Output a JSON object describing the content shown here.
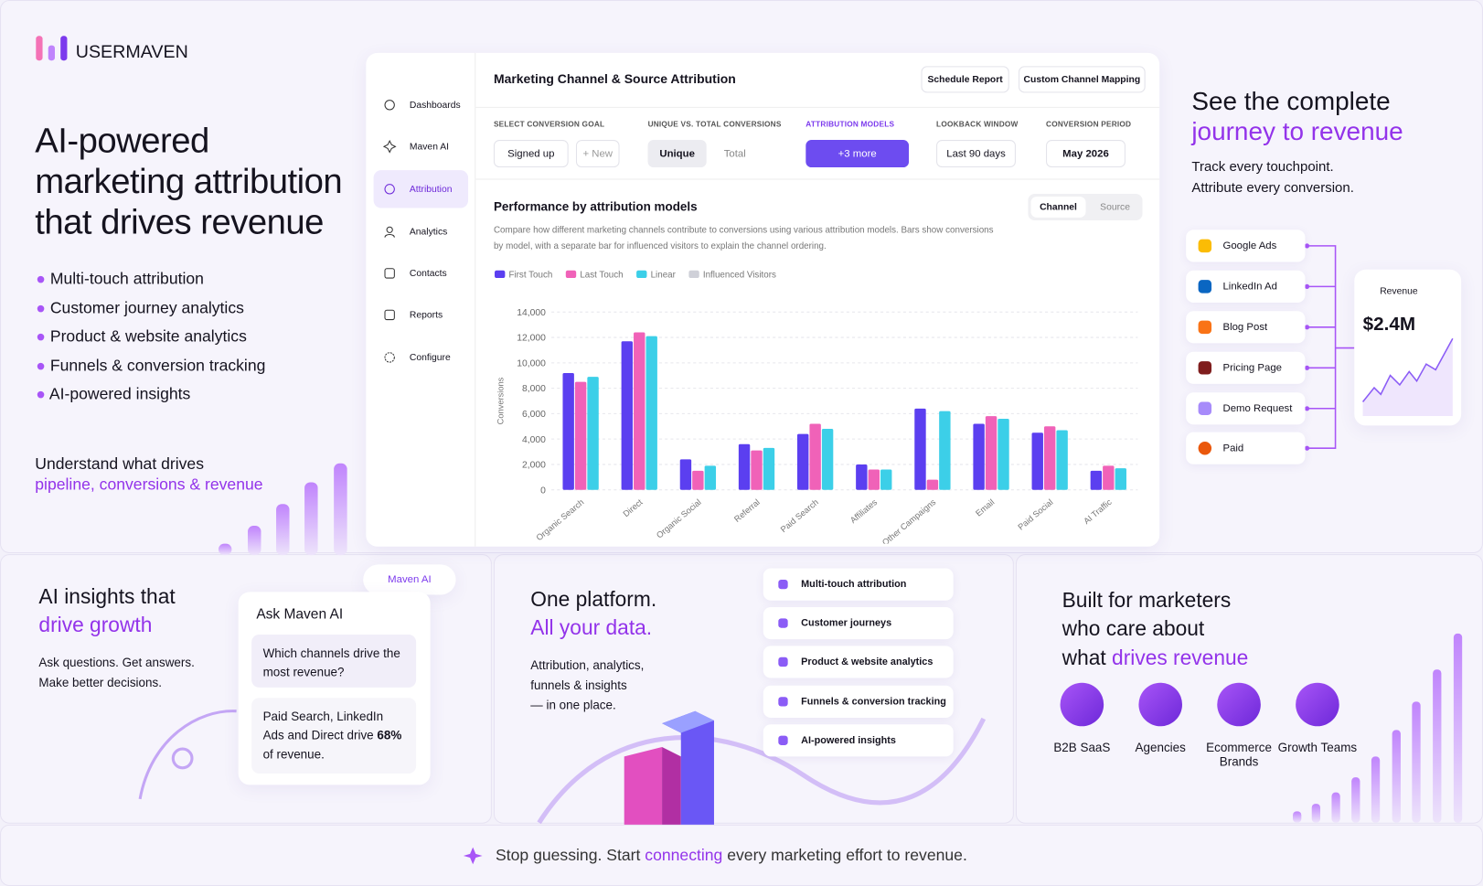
{
  "brand": "USERMAVEN",
  "hero": {
    "title_lines": [
      "AI-powered",
      "marketing attribution",
      "that drives revenue"
    ],
    "features": [
      "Multi-touch attribution",
      "Customer journey analytics",
      "Product & website analytics",
      "Funnels & conversion tracking",
      "AI-powered insights"
    ],
    "tagline": [
      "Understand what drives",
      "pipeline, conversions & revenue"
    ]
  },
  "dashboard": {
    "nav": [
      "Dashboards",
      "Maven AI",
      "Attribution",
      "Analytics",
      "Contacts",
      "Reports",
      "Configure"
    ],
    "title": "Marketing Channel & Source Attribution",
    "actions": [
      "Schedule Report",
      "Custom Channel Mapping"
    ],
    "filters": [
      {
        "label": "SELECT CONVERSION GOAL",
        "options": [
          "Signed up",
          "+ New"
        ]
      },
      {
        "label": "UNIQUE VS. TOTAL CONVERSIONS",
        "options": [
          "Unique",
          "Total"
        ]
      },
      {
        "label": "ATTRIBUTION MODELS",
        "options": [
          "+3 more"
        ]
      },
      {
        "label": "LOOKBACK WINDOW",
        "options": [
          "Last 90 days"
        ]
      },
      {
        "label": "CONVERSION PERIOD",
        "options": [
          "May 2026"
        ]
      }
    ],
    "tabs": [
      "Channel",
      "Source"
    ]
  },
  "chart_data": {
    "type": "bar",
    "title": "Performance by attribution models",
    "subtitle": "Compare how different marketing channels contribute to conversions using various attribution models. Bars show conversions by model, with a separate bar for influenced visitors to explain the channel ordering.",
    "y_label": "Conversions",
    "categories": [
      "Organic Search",
      "Direct",
      "Organic Social",
      "Referral",
      "Paid Search",
      "Affiliates",
      "Other Campaigns",
      "Email",
      "Paid Social",
      "AI Traffic"
    ],
    "series": [
      {
        "name": "First Touch",
        "color": "#5b3ff0",
        "values": [
          9200,
          11700,
          2400,
          3600,
          4400,
          2000,
          6400,
          5200,
          4500,
          1500
        ]
      },
      {
        "name": "Last Touch",
        "color": "#f062b8",
        "values": [
          8500,
          12400,
          1500,
          3100,
          5200,
          1600,
          800,
          5800,
          5000,
          1900
        ]
      },
      {
        "name": "Linear",
        "color": "#3ccfe8",
        "values": [
          8900,
          12100,
          1900,
          3300,
          4800,
          1600,
          6200,
          5600,
          4700,
          1700
        ]
      },
      {
        "name": "Influenced Visitors",
        "color": "#cfd0d8",
        "values": [
          null,
          null,
          null,
          null,
          null,
          null,
          null,
          null,
          null,
          null
        ]
      }
    ],
    "ylim": [
      0,
      14000
    ],
    "yticks": [
      0,
      {
        "value": 2000,
        "label": "2,000"
      },
      {
        "value": 4000,
        "label": "4,000"
      },
      {
        "value": 6000,
        "label": "6,000"
      },
      {
        "value": 8000,
        "label": "8,000"
      },
      {
        "value": 10000,
        "label": "10,000"
      },
      {
        "value": 12000,
        "label": "12,000"
      },
      {
        "value": 14000,
        "label": "14,000"
      }
    ],
    "grid": true
  },
  "journey": {
    "title": [
      "See the complete",
      "journey to revenue"
    ],
    "subtitle": [
      "Track every touchpoint.",
      "Attribute every conversion."
    ],
    "touchpoints": [
      "Google Ads",
      "LinkedIn Ad",
      "Blog Post",
      "Pricing Page",
      "Demo Request",
      "Paid"
    ],
    "revenue_label": "Revenue",
    "revenue_value": "$2.4M"
  },
  "ai": {
    "title": [
      "AI insights that",
      "drive growth"
    ],
    "subtitle": [
      "Ask questions. Get answers.",
      "Make better decisions."
    ],
    "chip": "Maven AI",
    "card_title": "Ask Maven AI",
    "question": "Which channels drive the most revenue?",
    "answer": [
      "Paid Search, LinkedIn Ads and Direct drive ",
      "68%",
      " of revenue."
    ]
  },
  "platform": {
    "title": [
      "One platform.",
      "All your data."
    ],
    "description": [
      "Attribution, analytics,",
      "funnels & insights",
      "— in one place."
    ],
    "items": [
      "Multi-touch attribution",
      "Customer journeys",
      "Product & website analytics",
      "Funnels & conversion tracking",
      "AI-powered insights"
    ]
  },
  "audience": {
    "title": [
      "Built for marketers",
      "who care about",
      "what ",
      "drives revenue"
    ],
    "segments": [
      "B2B SaaS",
      "Agencies",
      "Ecommerce Brands",
      "Growth Teams"
    ]
  },
  "footer": [
    "Stop guessing. Start ",
    "connecting",
    " every marketing effort to revenue."
  ]
}
